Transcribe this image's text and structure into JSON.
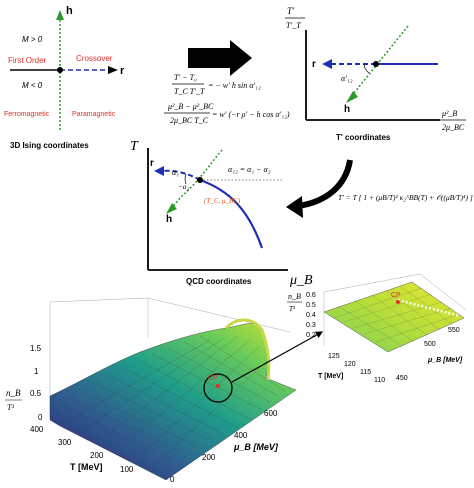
{
  "colors": {
    "label_red": "#e0302a",
    "blue_line": "#1f2fb5",
    "green_line": "#2a9a2a",
    "orange_text": "#e4571c",
    "black": "#000000"
  },
  "ising": {
    "axis_h": "h",
    "axis_r": "r",
    "m_pos": "M > 0",
    "m_neg": "M < 0",
    "first_order": "First Order",
    "crossover": "Crossover",
    "ferromagnetic": "Ferromagnetic",
    "paramagnetic": "Paramagnetic",
    "caption": "3D Ising coordinates"
  },
  "equations": {
    "line1": "(T' − T₀) / (T_C T'_T) = − w' h sin α'₁₂",
    "line1_lhs_num": "T′ − T₀",
    "line1_lhs_den": "T_C T′_T",
    "line1_rhs": "= − w′ h sin α′₁₂",
    "line2_lhs_num": "μ²_B − μ²_BC",
    "line2_lhs_den": "2μ_BC T_C",
    "line2_rhs": "= w′ (−r ρ′ − h cos α′₁₂)",
    "transform": "T′ = T [ 1 + (μB/T)² κ₂^BB(T) + 𝒪((μB/T)⁴) ]"
  },
  "tprime": {
    "y_label_num": "T′",
    "y_label_den": "T′_T",
    "x_label_num": "μ²_B",
    "x_label_den": "2μ_BC",
    "axis_r": "r",
    "axis_h": "h",
    "angle": "α′₁₂",
    "caption": "T' coordinates"
  },
  "qcd": {
    "y_label": "T",
    "x_label": "μ_B",
    "axis_r": "r",
    "axis_h": "h",
    "alpha1": "α₁",
    "alpha2": "−α₂",
    "alpha12": "α₁₂ = α₁ − α₂",
    "critical_point": "(T_C, μ_BC)",
    "caption": "QCD coordinates"
  },
  "surface_main": {
    "z_label_num": "n_B",
    "z_label_den": "T³",
    "z_ticks": [
      "1.5",
      "1",
      "0.5",
      "0"
    ],
    "t_axis_label": "T [MeV]",
    "t_ticks": [
      "400",
      "300",
      "200",
      "100"
    ],
    "mu_axis_label": "μ_B  [MeV]",
    "mu_ticks": [
      "600",
      "400",
      "200",
      "0"
    ],
    "cp_label": "CP"
  },
  "surface_zoom": {
    "z_label_num": "n_B",
    "z_label_den": "T³",
    "z_ticks": [
      "0.6",
      "0.5",
      "0.4",
      "0.3",
      "0.2"
    ],
    "t_axis_label": "T [MeV]",
    "t_ticks": [
      "125",
      "120",
      "115",
      "110"
    ],
    "mu_axis_label": "μ_B  [MeV]",
    "mu_ticks": [
      "550",
      "500",
      "450"
    ],
    "cp_label": "CP"
  }
}
